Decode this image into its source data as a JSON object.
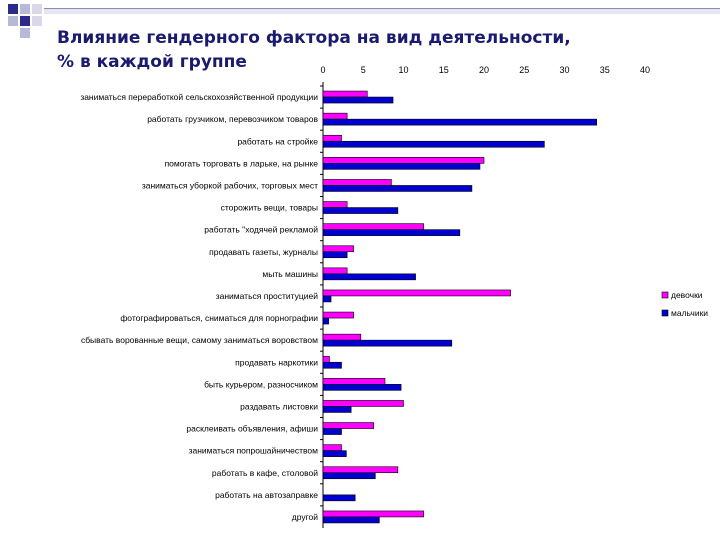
{
  "slide": {
    "title_line1": "Влияние гендерного фактора на вид деятельности,",
    "title_line2": "% в каждой группе"
  },
  "chart_data": {
    "type": "bar",
    "orientation": "horizontal",
    "title": "",
    "xlim": [
      0,
      40
    ],
    "xticks": [
      0,
      5,
      10,
      15,
      20,
      25,
      30,
      35,
      40
    ],
    "grid": false,
    "legend_position": "right",
    "categories": [
      "заниматься переработкой сельскохозяйственной продукции",
      "работать грузчиком, перевозчиком товаров",
      "работать на стройке",
      "помогать торговать в ларьке, на рынке",
      "заниматься уборкой рабочих, торговых мест",
      "сторожить вещи, товары",
      "работать \"ходячей рекламой",
      "продавать газеты, журналы",
      "мыть машины",
      "заниматься проституцией",
      "фотографироваться, сниматься для порнографии",
      "сбывать ворованные вещи, самому заниматься воровством",
      "продавать наркотики",
      "быть курьером, разносчиком",
      "раздавать листовки",
      "расклеивать объявления, афиши",
      "заниматься попрошайничеством",
      "работать в кафе, столовой",
      "работать на автозаправке",
      "другой"
    ],
    "series": [
      {
        "name": "девочки",
        "color": "#ff00ff",
        "values": [
          5.5,
          3,
          2.3,
          20,
          8.5,
          3,
          12.5,
          3.8,
          3,
          23.3,
          3.8,
          4.7,
          0.8,
          7.7,
          10,
          6.3,
          2.3,
          9.3,
          0,
          12.5
        ]
      },
      {
        "name": "мальчики",
        "color": "#0000d0",
        "values": [
          8.7,
          34,
          27.5,
          19.5,
          18.5,
          9.3,
          17,
          3,
          11.5,
          1,
          0.7,
          16,
          2.3,
          9.7,
          3.5,
          2.3,
          2.9,
          6.5,
          4,
          7
        ]
      }
    ]
  }
}
